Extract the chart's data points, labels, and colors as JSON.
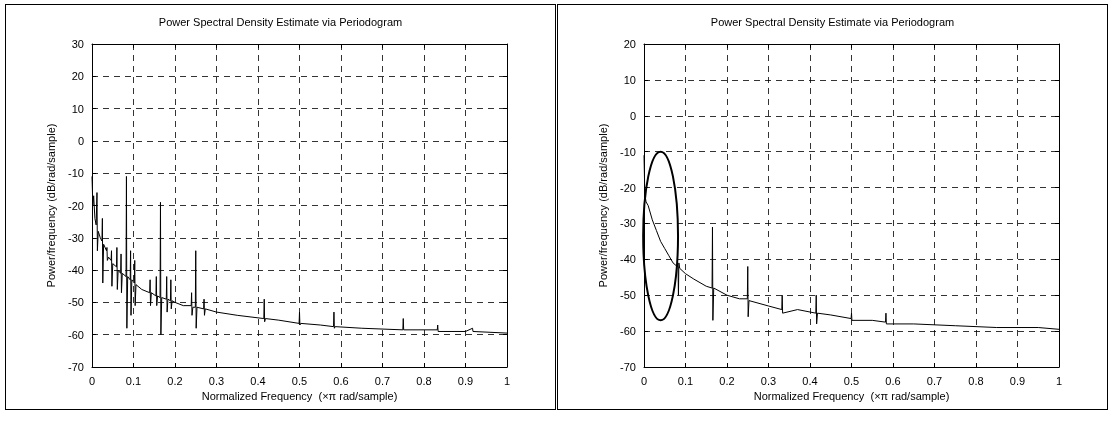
{
  "chart_data": [
    {
      "type": "line",
      "title": "Power Spectral Density Estimate via Periodogram",
      "xlabel": "Normalized Frequency  (×π rad/sample)",
      "ylabel": "Power/frequency (dB/rad/sample)",
      "xlim": [
        0,
        1
      ],
      "xticks": [
        0,
        0.1,
        0.2,
        0.3,
        0.4,
        0.5,
        0.6,
        0.7,
        0.8,
        0.9,
        1
      ],
      "ylim": [
        -70,
        30
      ],
      "yticks": [
        -70,
        -60,
        -50,
        -40,
        -30,
        -20,
        -10,
        0,
        10,
        20,
        30
      ],
      "grid": true,
      "series": [
        {
          "color": "#000000",
          "x": [
            0,
            0.002,
            0.004,
            0.007,
            0.01,
            0.012,
            0.013,
            0.015,
            0.02,
            0.024,
            0.025,
            0.026,
            0.028,
            0.035,
            0.036,
            0.037,
            0.04,
            0.046,
            0.047,
            0.048,
            0.05,
            0.059,
            0.06,
            0.061,
            0.063,
            0.069,
            0.07,
            0.071,
            0.073,
            0.082,
            0.083,
            0.084,
            0.086,
            0.092,
            0.093,
            0.094,
            0.096,
            0.102,
            0.103,
            0.104,
            0.106,
            0.12,
            0.139,
            0.14,
            0.141,
            0.143,
            0.154,
            0.155,
            0.156,
            0.158,
            0.164,
            0.165,
            0.166,
            0.168,
            0.179,
            0.18,
            0.181,
            0.183,
            0.189,
            0.19,
            0.191,
            0.193,
            0.2,
            0.22,
            0.239,
            0.24,
            0.241,
            0.243,
            0.249,
            0.25,
            0.251,
            0.253,
            0.269,
            0.27,
            0.271,
            0.273,
            0.3,
            0.35,
            0.414,
            0.415,
            0.416,
            0.418,
            0.45,
            0.499,
            0.5,
            0.501,
            0.503,
            0.55,
            0.582,
            0.583,
            0.584,
            0.586,
            0.65,
            0.749,
            0.75,
            0.751,
            0.8,
            0.832,
            0.833,
            0.834,
            0.9,
            0.917,
            0.918,
            1
          ],
          "values": [
            -11,
            -20,
            -17,
            -24,
            -26,
            -16,
            -34,
            -28,
            -30,
            -31,
            -24,
            -44,
            -32,
            -34,
            -33,
            -37,
            -36,
            -37,
            -34,
            -45,
            -38,
            -39,
            -33,
            -46,
            -40,
            -41,
            -35,
            -47,
            -41,
            -42,
            -11,
            -58,
            -42,
            -43,
            -34,
            -54,
            -43,
            -44,
            -37,
            -51,
            -44.5,
            -46,
            -47,
            -43,
            -51,
            -47,
            -48,
            -42,
            -51,
            -48,
            -48.5,
            -19,
            -60,
            -48.5,
            -49,
            -42,
            -53,
            -49,
            -49.5,
            -43,
            -52,
            -49.5,
            -50,
            -51,
            -51,
            -47,
            -54,
            -51.5,
            -51.5,
            -34,
            -58,
            -51.5,
            -52,
            -49,
            -54,
            -52,
            -53,
            -54,
            -55,
            -49,
            -56,
            -55,
            -55.5,
            -56.5,
            -53,
            -57,
            -56.5,
            -57,
            -57.5,
            -53,
            -58,
            -57.5,
            -58,
            -58.5,
            -55,
            -58.5,
            -58.5,
            -58.5,
            -57,
            -59,
            -59,
            -58,
            -59,
            -59.5
          ]
        }
      ]
    },
    {
      "type": "line",
      "title": "Power Spectral Density Estimate via Periodogram",
      "xlabel": "Normalized Frequency  (×π rad/sample)",
      "ylabel": "Power/frequency (dB/rad/sample)",
      "xlim": [
        0,
        1
      ],
      "xticks": [
        0,
        0.1,
        0.2,
        0.3,
        0.4,
        0.5,
        0.6,
        0.7,
        0.8,
        0.9,
        1
      ],
      "ylim": [
        -70,
        20
      ],
      "yticks": [
        -70,
        -60,
        -50,
        -40,
        -30,
        -20,
        -10,
        0,
        10,
        20
      ],
      "grid": true,
      "series": [
        {
          "color": "#000000",
          "x": [
            0,
            0.002,
            0.005,
            0.01,
            0.02,
            0.03,
            0.04,
            0.05,
            0.06,
            0.07,
            0.08,
            0.082,
            0.083,
            0.084,
            0.086,
            0.1,
            0.12,
            0.15,
            0.164,
            0.165,
            0.166,
            0.168,
            0.2,
            0.23,
            0.249,
            0.25,
            0.251,
            0.253,
            0.3,
            0.332,
            0.333,
            0.334,
            0.37,
            0.414,
            0.415,
            0.416,
            0.418,
            0.45,
            0.499,
            0.5,
            0.501,
            0.55,
            0.582,
            0.583,
            0.584,
            0.65,
            0.75,
            0.85,
            0.95,
            1
          ],
          "values": [
            -11,
            -22,
            -24,
            -25,
            -29,
            -32,
            -35,
            -37,
            -39,
            -41,
            -42,
            -42,
            -50,
            -41,
            -42.5,
            -44,
            -45.5,
            -47.5,
            -48,
            -31,
            -57,
            -48,
            -50,
            -51,
            -51,
            -42,
            -56,
            -51.5,
            -53,
            -54,
            -50,
            -55,
            -54,
            -55,
            -50,
            -58,
            -55,
            -55.5,
            -56.5,
            -55,
            -57,
            -57,
            -57.5,
            -55,
            -58,
            -58,
            -58.5,
            -59,
            -59,
            -59.5
          ]
        }
      ]
    }
  ]
}
